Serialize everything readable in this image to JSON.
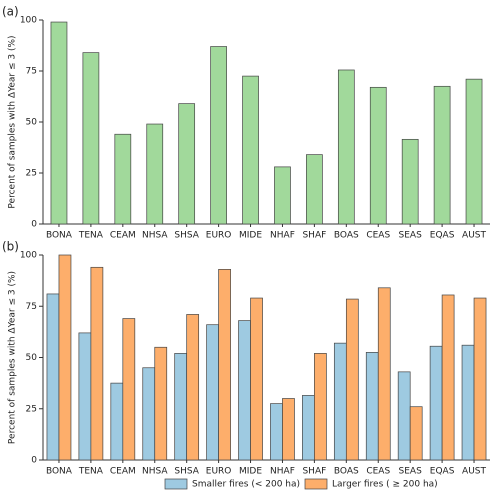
{
  "chart_data": [
    {
      "type": "bar",
      "panel_label": "(a)",
      "ylabel": "Percent of samples with ΔYear ≤ 3 (%)",
      "categories": [
        "BONA",
        "TENA",
        "CEAM",
        "NHSA",
        "SHSA",
        "EURO",
        "MIDE",
        "NHAF",
        "SHAF",
        "BOAS",
        "CEAS",
        "SEAS",
        "EQAS",
        "AUST"
      ],
      "values": [
        99,
        84,
        44,
        49,
        59,
        87,
        72.5,
        28,
        34,
        75.5,
        67,
        41.5,
        67.5,
        71
      ],
      "color": "#a1d99b",
      "ylim": [
        0,
        100
      ],
      "yticks": [
        0,
        25,
        50,
        75,
        100
      ]
    },
    {
      "type": "grouped_bar",
      "panel_label": "(b)",
      "ylabel": "Percent of samples with ΔYear ≤ 3 (%)",
      "categories": [
        "BONA",
        "TENA",
        "CEAM",
        "NHSA",
        "SHSA",
        "EURO",
        "MIDE",
        "NHAF",
        "SHAF",
        "BOAS",
        "CEAS",
        "SEAS",
        "EQAS",
        "AUST"
      ],
      "series": [
        {
          "name": "Smaller fires (< 200 ha)",
          "color": "#9ecae1",
          "values": [
            81,
            62,
            37.5,
            45,
            52,
            66,
            68,
            27.5,
            31.5,
            57,
            52.5,
            43,
            55.5,
            56
          ]
        },
        {
          "name": "Larger fires ( ≥ 200 ha)",
          "color": "#fdae6b",
          "values": [
            100,
            94,
            69,
            55,
            71,
            93,
            79,
            30,
            52,
            78.5,
            84,
            26,
            80.5,
            79
          ]
        }
      ],
      "ylim": [
        0,
        100
      ],
      "yticks": [
        0,
        25,
        50,
        75,
        100
      ],
      "legend": "bottom"
    }
  ]
}
